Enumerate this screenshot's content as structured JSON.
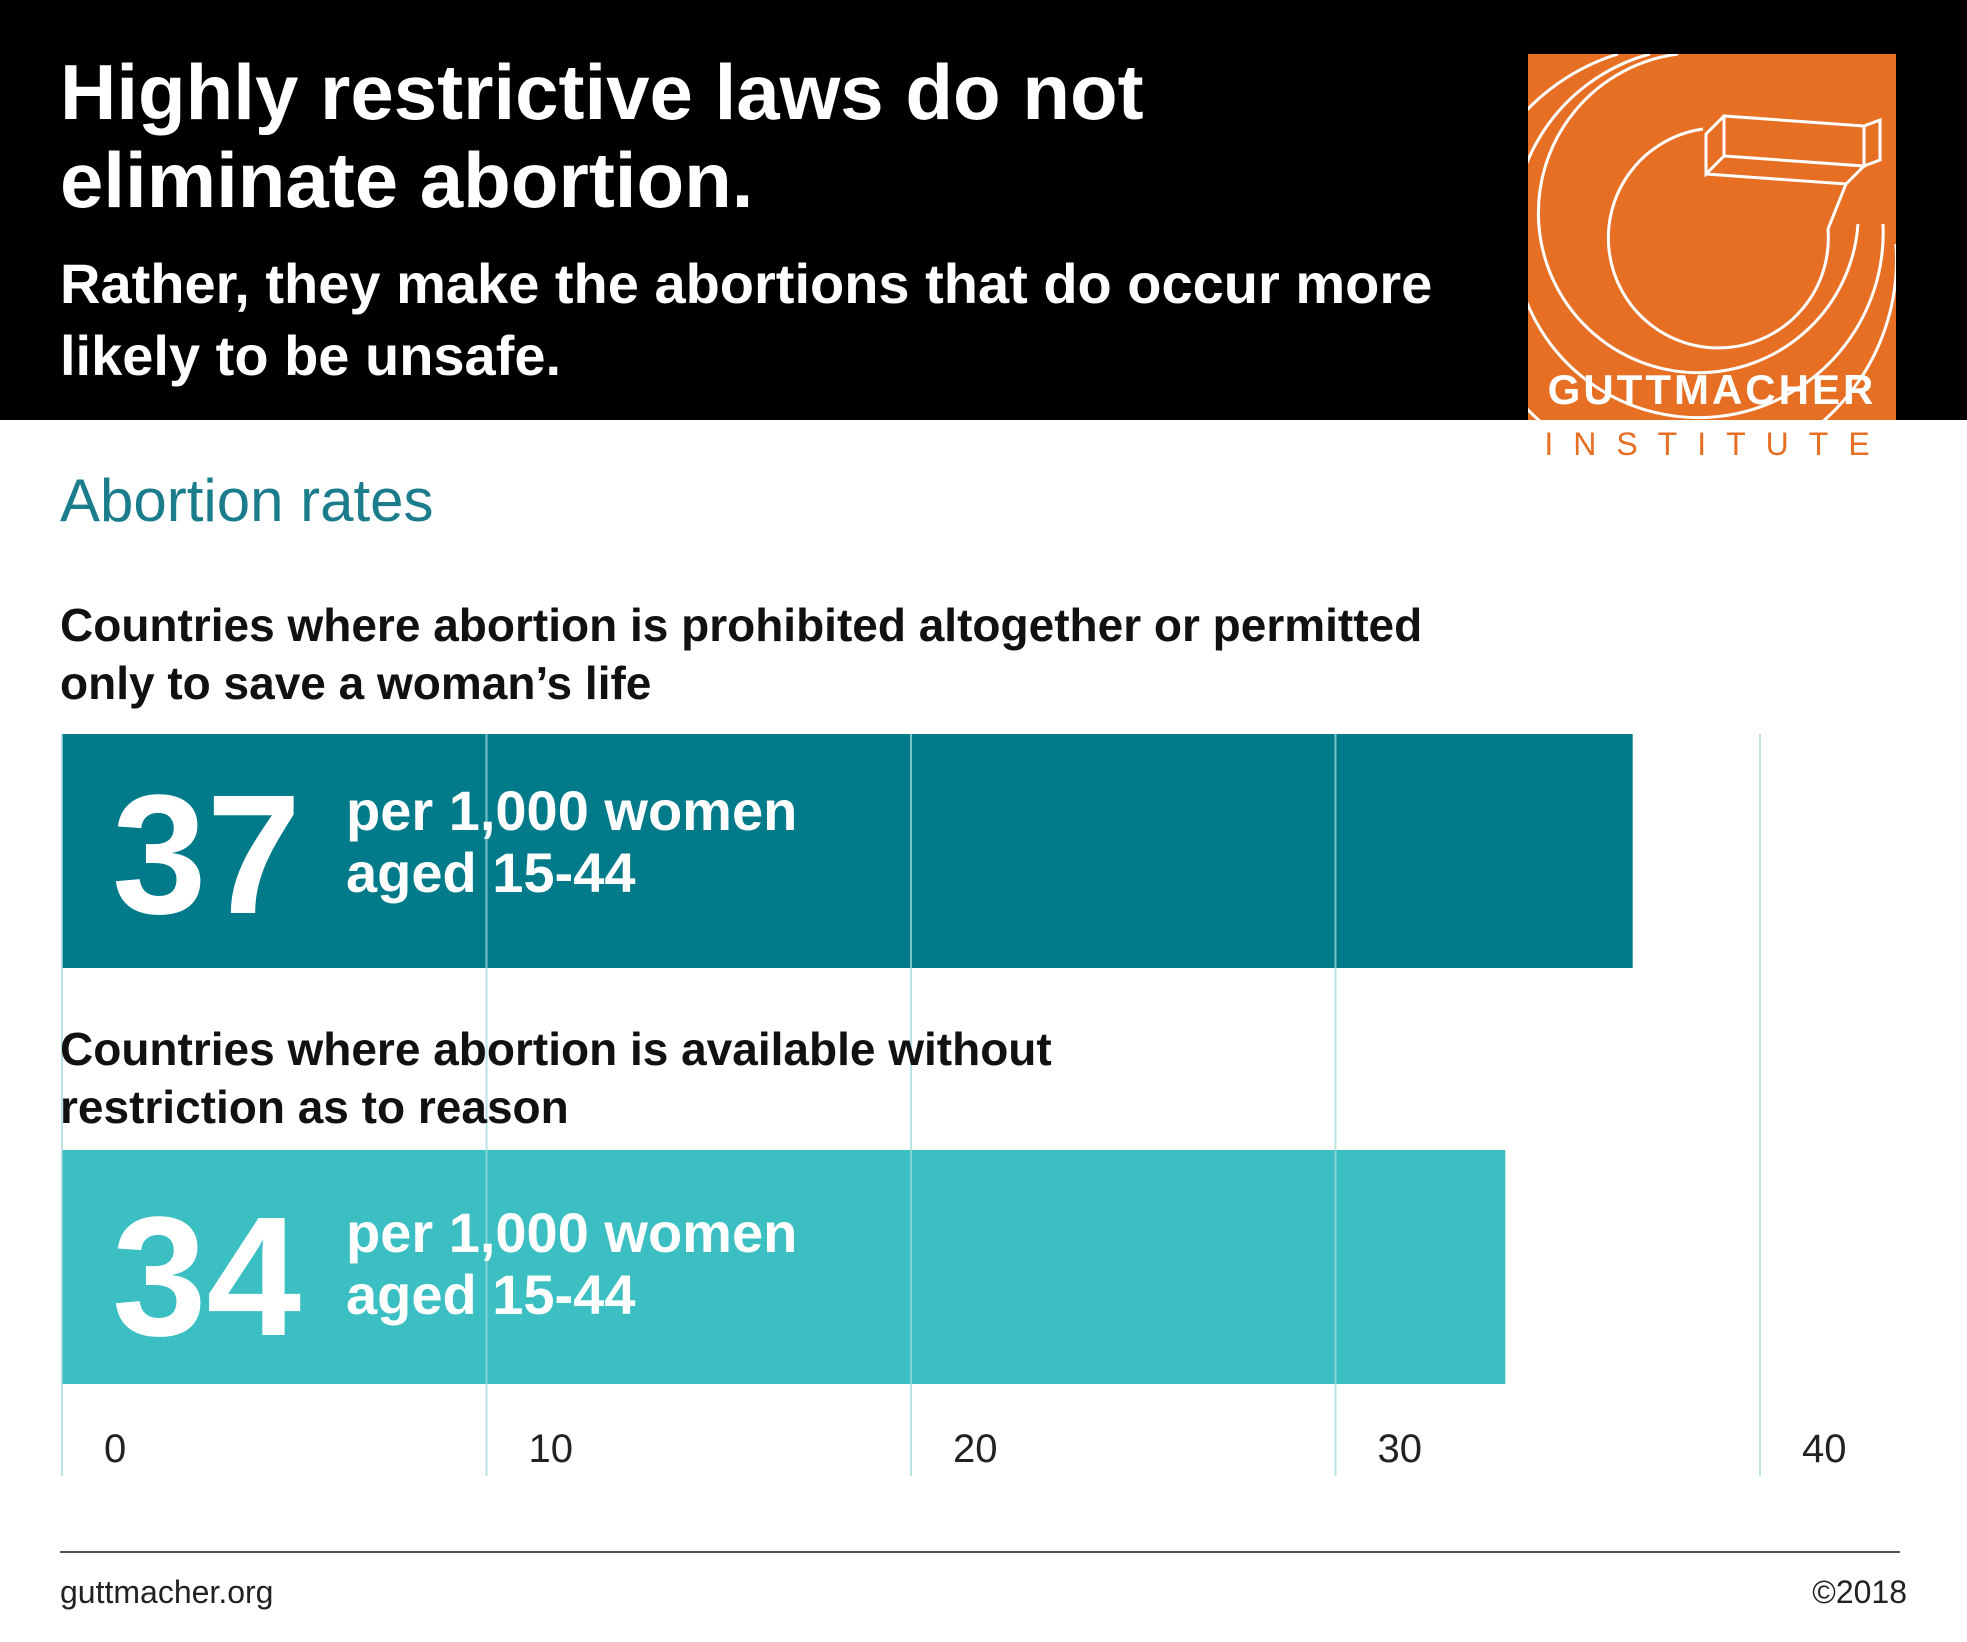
{
  "header": {
    "title": "Highly restrictive laws do not eliminate abortion.",
    "subtitle": "Rather, they make the abortions that do occur more likely to be unsafe."
  },
  "logo": {
    "name": "GUTTMACHER",
    "sub": "INSTITUTE",
    "color": "#e66f24",
    "icon": "guttmacher-g-logo-icon"
  },
  "section_title": "Abortion rates",
  "footer": {
    "website": "guttmacher.org",
    "copyright": "©2018"
  },
  "colors": {
    "restrictive": "#017a8a",
    "unrestricted": "#3bbfc2",
    "grid": "#9fdada",
    "accent_text": "#1b7d8c"
  },
  "chart_data": {
    "type": "bar",
    "orientation": "horizontal",
    "title": "Abortion rates",
    "categories": [
      "Countries where abortion is prohibited altogether or permitted only to save a woman’s life",
      "Countries where abortion is available without restriction as to reason"
    ],
    "values": [
      37,
      34
    ],
    "value_labels": [
      "37",
      "34"
    ],
    "unit_label": "per 1,000 women aged 15-44",
    "unit_lines": [
      "per 1,000 women",
      "aged 15-44"
    ],
    "xlim": [
      0,
      40
    ],
    "xticks": [
      0,
      10,
      20,
      30,
      40
    ],
    "grid": true,
    "bar_colors": [
      "#017a8a",
      "#3bbfc2"
    ]
  }
}
